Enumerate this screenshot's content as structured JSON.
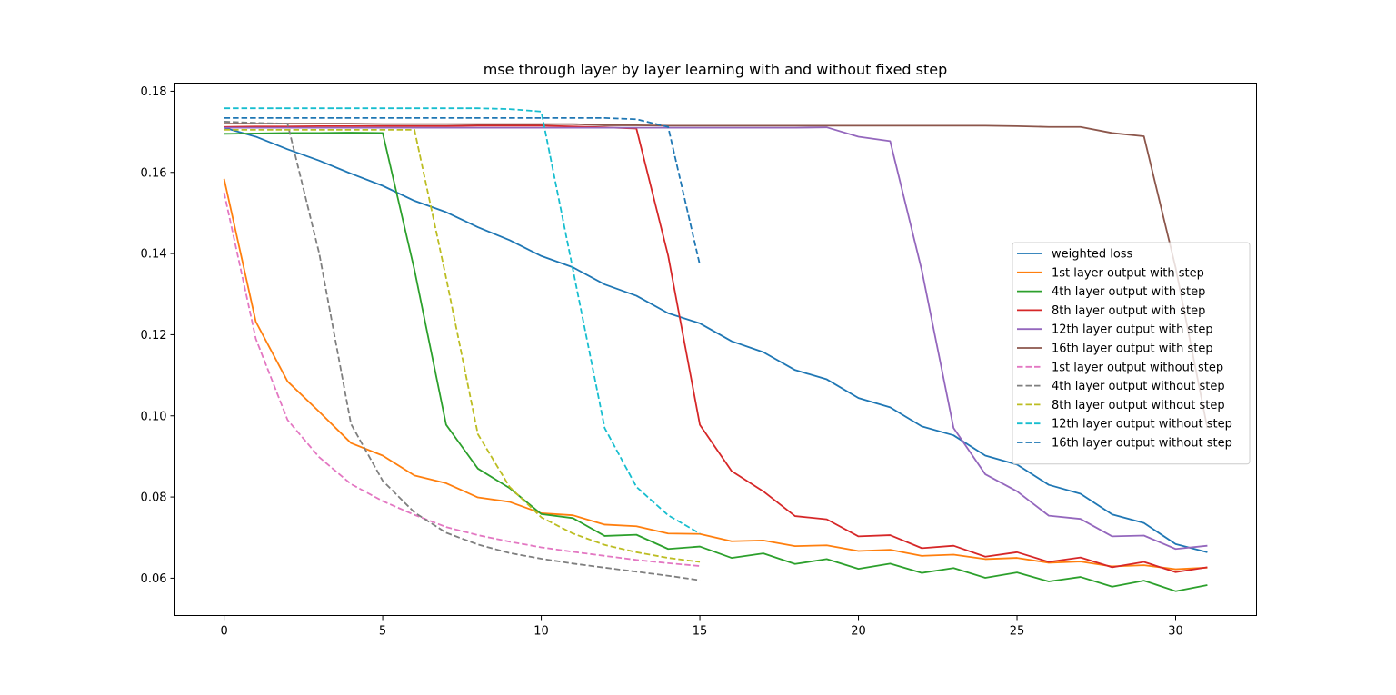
{
  "chart_data": {
    "type": "line",
    "title": "mse through layer by layer learning with and without fixed step",
    "xlabel": "",
    "ylabel": "",
    "xlim": [
      -1.55,
      32.55
    ],
    "ylim": [
      0.0508,
      0.182
    ],
    "xticks": [
      0,
      5,
      10,
      15,
      20,
      25,
      30
    ],
    "yticks": [
      0.06,
      0.08,
      0.1,
      0.12,
      0.14,
      0.16,
      0.18
    ],
    "xtick_labels": [
      "0",
      "5",
      "10",
      "15",
      "20",
      "25",
      "30"
    ],
    "ytick_labels": [
      "0.06",
      "0.08",
      "0.10",
      "0.12",
      "0.14",
      "0.16",
      "0.18"
    ],
    "grid": false,
    "legend_position": "center-right",
    "series": [
      {
        "name": "weighted loss",
        "color": "#1f77b4",
        "dash": "solid",
        "x": [
          0,
          1,
          2,
          3,
          4,
          5,
          6,
          7,
          8,
          9,
          10,
          11,
          12,
          13,
          14,
          15,
          16,
          17,
          18,
          19,
          20,
          21,
          22,
          23,
          24,
          25,
          26,
          27,
          28,
          29,
          30,
          31
        ],
        "y": [
          0.171,
          0.1688,
          0.1657,
          0.1629,
          0.1597,
          0.1567,
          0.153,
          0.1502,
          0.1465,
          0.1433,
          0.1394,
          0.1366,
          0.1324,
          0.1296,
          0.1253,
          0.1228,
          0.1184,
          0.1157,
          0.1113,
          0.109,
          0.1044,
          0.1021,
          0.0974,
          0.0952,
          0.0902,
          0.088,
          0.083,
          0.0808,
          0.0757,
          0.0736,
          0.0684,
          0.0664
        ]
      },
      {
        "name": "1st layer output with step",
        "color": "#ff7f0e",
        "dash": "solid",
        "x": [
          0,
          1,
          2,
          3,
          4,
          5,
          6,
          7,
          8,
          9,
          10,
          11,
          12,
          13,
          14,
          15,
          16,
          17,
          18,
          19,
          20,
          21,
          22,
          23,
          24,
          25,
          26,
          27,
          28,
          29,
          30,
          31
        ],
        "y": [
          0.1584,
          0.1232,
          0.1085,
          0.101,
          0.0933,
          0.0902,
          0.0853,
          0.0834,
          0.0799,
          0.0788,
          0.076,
          0.0755,
          0.0732,
          0.0728,
          0.071,
          0.0709,
          0.0691,
          0.0693,
          0.0679,
          0.0681,
          0.0667,
          0.067,
          0.0655,
          0.0658,
          0.0647,
          0.065,
          0.0638,
          0.0641,
          0.0629,
          0.0632,
          0.0622,
          0.0626
        ]
      },
      {
        "name": "4th layer output with step",
        "color": "#2ca02c",
        "dash": "solid",
        "x": [
          0,
          1,
          2,
          3,
          4,
          5,
          6,
          7,
          8,
          9,
          10,
          11,
          12,
          13,
          14,
          15,
          16,
          17,
          18,
          19,
          20,
          21,
          22,
          23,
          24,
          25,
          26,
          27,
          28,
          29,
          30,
          31
        ],
        "y": [
          0.1695,
          0.1696,
          0.1697,
          0.1697,
          0.1698,
          0.1697,
          0.136,
          0.0978,
          0.087,
          0.0822,
          0.0758,
          0.0748,
          0.0704,
          0.0707,
          0.0672,
          0.0678,
          0.065,
          0.0661,
          0.0635,
          0.0647,
          0.0623,
          0.0636,
          0.0613,
          0.0625,
          0.0601,
          0.0614,
          0.0592,
          0.0603,
          0.0579,
          0.0594,
          0.0568,
          0.0583
        ]
      },
      {
        "name": "8th layer output with step",
        "color": "#d62728",
        "dash": "solid",
        "x": [
          0,
          1,
          2,
          3,
          4,
          5,
          6,
          7,
          8,
          9,
          10,
          11,
          12,
          13,
          14,
          15,
          16,
          17,
          18,
          19,
          20,
          21,
          22,
          23,
          24,
          25,
          26,
          27,
          28,
          29,
          30,
          31
        ],
        "y": [
          0.1712,
          0.1713,
          0.1713,
          0.1714,
          0.1714,
          0.1714,
          0.1714,
          0.1714,
          0.1715,
          0.1715,
          0.1715,
          0.1713,
          0.1711,
          0.1708,
          0.1395,
          0.0978,
          0.0864,
          0.0814,
          0.0753,
          0.0745,
          0.0703,
          0.0706,
          0.0674,
          0.068,
          0.0653,
          0.0664,
          0.064,
          0.0651,
          0.0627,
          0.064,
          0.0615,
          0.0627
        ]
      },
      {
        "name": "12th layer output with step",
        "color": "#9467bd",
        "dash": "solid",
        "x": [
          0,
          1,
          2,
          3,
          4,
          5,
          6,
          7,
          8,
          9,
          10,
          11,
          12,
          13,
          14,
          15,
          16,
          17,
          18,
          19,
          20,
          21,
          22,
          23,
          24,
          25,
          26,
          27,
          28,
          29,
          30,
          31
        ],
        "y": [
          0.171,
          0.171,
          0.171,
          0.171,
          0.171,
          0.171,
          0.171,
          0.171,
          0.171,
          0.171,
          0.171,
          0.171,
          0.171,
          0.171,
          0.171,
          0.171,
          0.171,
          0.171,
          0.171,
          0.1711,
          0.1688,
          0.1677,
          0.1358,
          0.097,
          0.0856,
          0.0814,
          0.0754,
          0.0746,
          0.0703,
          0.0705,
          0.0672,
          0.068
        ]
      },
      {
        "name": "16th layer output with step",
        "color": "#8c564b",
        "dash": "solid",
        "x": [
          0,
          1,
          2,
          3,
          4,
          5,
          6,
          7,
          8,
          9,
          10,
          11,
          12,
          13,
          14,
          15,
          16,
          17,
          18,
          19,
          20,
          21,
          22,
          23,
          24,
          25,
          26,
          27,
          28,
          29,
          30,
          31
        ],
        "y": [
          0.172,
          0.172,
          0.172,
          0.172,
          0.172,
          0.1719,
          0.1719,
          0.1719,
          0.1719,
          0.1719,
          0.1719,
          0.1719,
          0.1716,
          0.1716,
          0.1715,
          0.1715,
          0.1715,
          0.1715,
          0.1715,
          0.1715,
          0.1715,
          0.1715,
          0.1715,
          0.1715,
          0.1715,
          0.1714,
          0.1712,
          0.1712,
          0.1697,
          0.1689,
          0.1365,
          0.097
        ]
      },
      {
        "name": "1st layer output without step",
        "color": "#e377c2",
        "dash": "dashed",
        "x": [
          0,
          1,
          2,
          3,
          4,
          5,
          6,
          7,
          8,
          9,
          10,
          11,
          12,
          13,
          14,
          15
        ],
        "y": [
          0.155,
          0.119,
          0.099,
          0.0898,
          0.0832,
          0.079,
          0.0756,
          0.0726,
          0.0706,
          0.069,
          0.0676,
          0.0665,
          0.0655,
          0.0645,
          0.0637,
          0.063
        ]
      },
      {
        "name": "4th layer output without step",
        "color": "#7f7f7f",
        "dash": "dashed",
        "x": [
          0,
          1,
          2,
          3,
          4,
          5,
          6,
          7,
          8,
          9,
          10,
          11,
          12,
          13,
          14,
          15
        ],
        "y": [
          0.1725,
          0.1722,
          0.172,
          0.14,
          0.098,
          0.084,
          0.0762,
          0.0712,
          0.0683,
          0.0662,
          0.0648,
          0.0636,
          0.0626,
          0.0616,
          0.0606,
          0.0595
        ]
      },
      {
        "name": "8th layer output without step",
        "color": "#bcbd22",
        "dash": "dashed",
        "x": [
          0,
          1,
          2,
          3,
          4,
          5,
          6,
          7,
          8,
          9,
          10,
          11,
          12,
          13,
          14,
          15
        ],
        "y": [
          0.1705,
          0.1705,
          0.1705,
          0.1705,
          0.1705,
          0.1705,
          0.1705,
          0.134,
          0.0955,
          0.0825,
          0.075,
          0.071,
          0.0682,
          0.0664,
          0.065,
          0.064
        ]
      },
      {
        "name": "12th layer output without step",
        "color": "#17becf",
        "dash": "dashed",
        "x": [
          0,
          1,
          2,
          3,
          4,
          5,
          6,
          7,
          8,
          9,
          10,
          11,
          12,
          13,
          14,
          15
        ],
        "y": [
          0.1758,
          0.1758,
          0.1758,
          0.1758,
          0.1758,
          0.1758,
          0.1758,
          0.1758,
          0.1758,
          0.1756,
          0.175,
          0.136,
          0.097,
          0.0825,
          0.0755,
          0.071
        ]
      },
      {
        "name": "16th layer output without step",
        "color": "#1f77b4",
        "dash": "dashed",
        "x": [
          0,
          1,
          2,
          3,
          4,
          5,
          6,
          7,
          8,
          9,
          10,
          11,
          12,
          13,
          14,
          15
        ],
        "y": [
          0.1734,
          0.1734,
          0.1734,
          0.1734,
          0.1734,
          0.1734,
          0.1734,
          0.1734,
          0.1734,
          0.1734,
          0.1734,
          0.1734,
          0.1734,
          0.1731,
          0.1712,
          0.1372
        ]
      }
    ]
  }
}
